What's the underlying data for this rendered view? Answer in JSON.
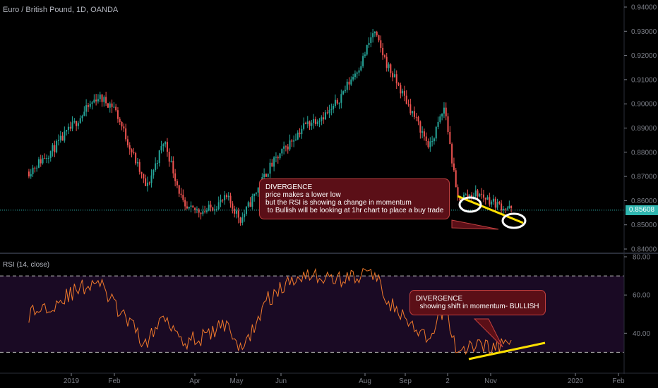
{
  "header": {
    "symbol_title": "Euro / British Pound, 1D, OANDA",
    "rsi_title": "RSI (14, close)",
    "last_price": "0.85608"
  },
  "annotations": {
    "price_callout": "DIVERGENCE\nprice makes a lower low\nbut the RSI is showing a change in momentum\n to Bullish will be looking at 1hr chart to place a buy trade",
    "rsi_callout": "DIVERGENCE\n  showing shift in momentum- BULLISH"
  },
  "colors": {
    "background": "#000000",
    "up": "#26a69a",
    "down": "#ef5350",
    "rsi_line": "#f0792b",
    "rsi_band": "#1a0a24",
    "trendline": "#ffe000",
    "last_price_line": "#2fb6b0",
    "axis_text": "#7c7f88",
    "callout_bg": "#5b0f17"
  },
  "chart_data": [
    {
      "type": "candlestick",
      "title": "Euro / British Pound, 1D, OANDA",
      "ylim": [
        0.84,
        0.94
      ],
      "y_ticks": [
        "0.94000",
        "0.93000",
        "0.92000",
        "0.91000",
        "0.90000",
        "0.89000",
        "0.88000",
        "0.87000",
        "0.86000",
        "0.85000",
        "0.84000"
      ],
      "last_price": 0.85608,
      "x_ticks": [
        "2019",
        "Feb",
        "Apr",
        "May",
        "Jun",
        "Aug",
        "Sep",
        "2",
        "Nov",
        "2020",
        "Feb"
      ],
      "close_path": {
        "x": [
          "2018-12-01",
          "2018-12-20",
          "2019-01-20",
          "2019-02-01",
          "2019-02-25",
          "2019-03-10",
          "2019-03-25",
          "2019-04-10",
          "2019-04-25",
          "2019-05-05",
          "2019-05-25",
          "2019-06-20",
          "2019-07-10",
          "2019-08-01",
          "2019-08-10",
          "2019-08-20",
          "2019-09-05",
          "2019-09-20",
          "2019-10-01",
          "2019-10-10",
          "2019-10-25",
          "2019-11-10",
          "2019-11-20"
        ],
        "y": [
          0.872,
          0.882,
          0.903,
          0.899,
          0.865,
          0.885,
          0.856,
          0.856,
          0.861,
          0.852,
          0.873,
          0.891,
          0.897,
          0.917,
          0.93,
          0.916,
          0.899,
          0.882,
          0.899,
          0.861,
          0.863,
          0.858,
          0.856
        ]
      }
    },
    {
      "type": "line",
      "title": "RSI (14, close)",
      "ylim": [
        20,
        80
      ],
      "y_ticks": [
        "80.00",
        "60.00",
        "40.00"
      ],
      "bands": [
        30,
        70
      ],
      "x": [
        "2018-12-01",
        "2018-12-20",
        "2019-01-20",
        "2019-02-01",
        "2019-02-25",
        "2019-03-10",
        "2019-03-25",
        "2019-04-10",
        "2019-04-25",
        "2019-05-05",
        "2019-05-25",
        "2019-06-20",
        "2019-07-10",
        "2019-08-01",
        "2019-08-10",
        "2019-08-20",
        "2019-09-05",
        "2019-09-20",
        "2019-10-01",
        "2019-10-10",
        "2019-10-25",
        "2019-11-10",
        "2019-11-20"
      ],
      "values": [
        50,
        56,
        68,
        55,
        34,
        50,
        36,
        38,
        46,
        30,
        58,
        72,
        68,
        70,
        72,
        58,
        44,
        35,
        55,
        30,
        34,
        33,
        36
      ]
    }
  ]
}
